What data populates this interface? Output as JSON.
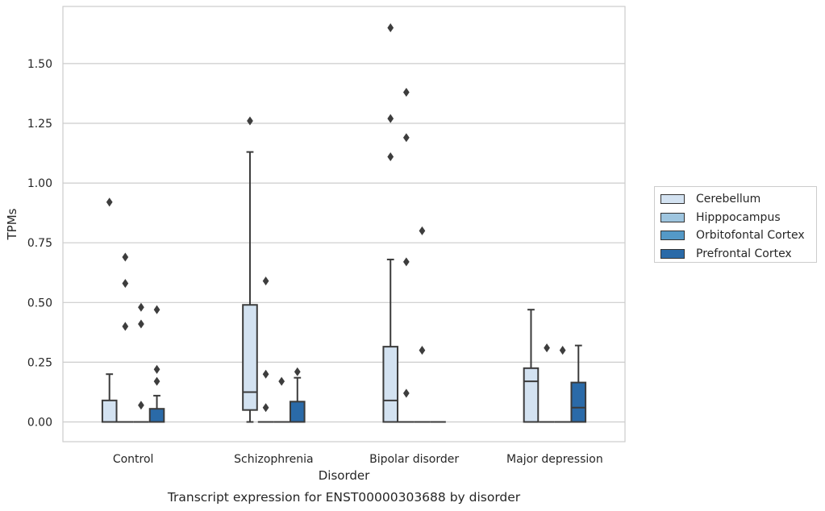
{
  "chart_data": {
    "type": "boxplot",
    "title": "Transcript expression for ENST00000303688 by disorder",
    "xlabel": "Disorder",
    "ylabel": "TPMs",
    "ylim": [
      -0.08,
      1.78
    ],
    "yticks": [
      "0.00",
      "0.25",
      "0.50",
      "0.75",
      "1.00",
      "1.25",
      "1.50"
    ],
    "ytick_values": [
      0.0,
      0.25,
      0.5,
      0.75,
      1.0,
      1.25,
      1.5
    ],
    "categories": [
      "Control",
      "Schizophrenia",
      "Bipolar disorder",
      "Major depression"
    ],
    "grid": true,
    "legend_position": "right",
    "series": [
      {
        "name": "Cerebellum",
        "color": "#d3e2f1",
        "boxes": [
          {
            "q1": 0.0,
            "median": 0.0,
            "q3": 0.09,
            "whisker_low": 0.0,
            "whisker_high": 0.2,
            "outliers": [
              0.92
            ]
          },
          {
            "q1": 0.05,
            "median": 0.125,
            "q3": 0.49,
            "whisker_low": 0.0,
            "whisker_high": 1.13,
            "outliers": [
              1.26
            ]
          },
          {
            "q1": 0.0,
            "median": 0.09,
            "q3": 0.315,
            "whisker_low": 0.0,
            "whisker_high": 0.68,
            "outliers": [
              1.65,
              1.27,
              1.11
            ]
          },
          {
            "q1": 0.0,
            "median": 0.17,
            "q3": 0.225,
            "whisker_low": 0.0,
            "whisker_high": 0.47,
            "outliers": []
          }
        ]
      },
      {
        "name": "Hipppocampus",
        "color": "#9ec5df",
        "boxes": [
          {
            "q1": 0.0,
            "median": 0.0,
            "q3": 0.0,
            "whisker_low": 0.0,
            "whisker_high": 0.0,
            "outliers": [
              0.69,
              0.58,
              0.4
            ]
          },
          {
            "q1": 0.0,
            "median": 0.0,
            "q3": 0.0,
            "whisker_low": 0.0,
            "whisker_high": 0.0,
            "outliers": [
              0.59,
              0.2,
              0.06
            ]
          },
          {
            "q1": 0.0,
            "median": 0.0,
            "q3": 0.0,
            "whisker_low": 0.0,
            "whisker_high": 0.0,
            "outliers": [
              1.38,
              1.19,
              0.67,
              0.12
            ]
          },
          {
            "q1": 0.0,
            "median": 0.0,
            "q3": 0.0,
            "whisker_low": 0.0,
            "whisker_high": 0.0,
            "outliers": [
              0.31
            ]
          }
        ]
      },
      {
        "name": "Orbitofontal Cortex",
        "color": "#5499c7",
        "boxes": [
          {
            "q1": 0.0,
            "median": 0.0,
            "q3": 0.0,
            "whisker_low": 0.0,
            "whisker_high": 0.0,
            "outliers": [
              0.48,
              0.41,
              0.07
            ]
          },
          {
            "q1": 0.0,
            "median": 0.0,
            "q3": 0.0,
            "whisker_low": 0.0,
            "whisker_high": 0.0,
            "outliers": [
              0.17
            ]
          },
          {
            "q1": 0.0,
            "median": 0.0,
            "q3": 0.0,
            "whisker_low": 0.0,
            "whisker_high": 0.0,
            "outliers": [
              0.8,
              0.3
            ]
          },
          {
            "q1": 0.0,
            "median": 0.0,
            "q3": 0.0,
            "whisker_low": 0.0,
            "whisker_high": 0.0,
            "outliers": [
              0.3
            ]
          }
        ]
      },
      {
        "name": "Prefrontal Cortex",
        "color": "#2a6aa8",
        "boxes": [
          {
            "q1": 0.0,
            "median": 0.0,
            "q3": 0.055,
            "whisker_low": 0.0,
            "whisker_high": 0.11,
            "outliers": [
              0.47,
              0.22,
              0.17
            ]
          },
          {
            "q1": 0.0,
            "median": 0.0,
            "q3": 0.085,
            "whisker_low": 0.0,
            "whisker_high": 0.185,
            "outliers": [
              0.21
            ]
          },
          {
            "q1": 0.0,
            "median": 0.0,
            "q3": 0.0,
            "whisker_low": 0.0,
            "whisker_high": 0.0,
            "outliers": []
          },
          {
            "q1": 0.0,
            "median": 0.06,
            "q3": 0.165,
            "whisker_low": 0.0,
            "whisker_high": 0.32,
            "outliers": []
          }
        ]
      }
    ]
  },
  "colors": {
    "box_edge": "#3b3b3b",
    "grid": "#cccccc",
    "axes_border": "#cccccc",
    "text": "#262626"
  }
}
